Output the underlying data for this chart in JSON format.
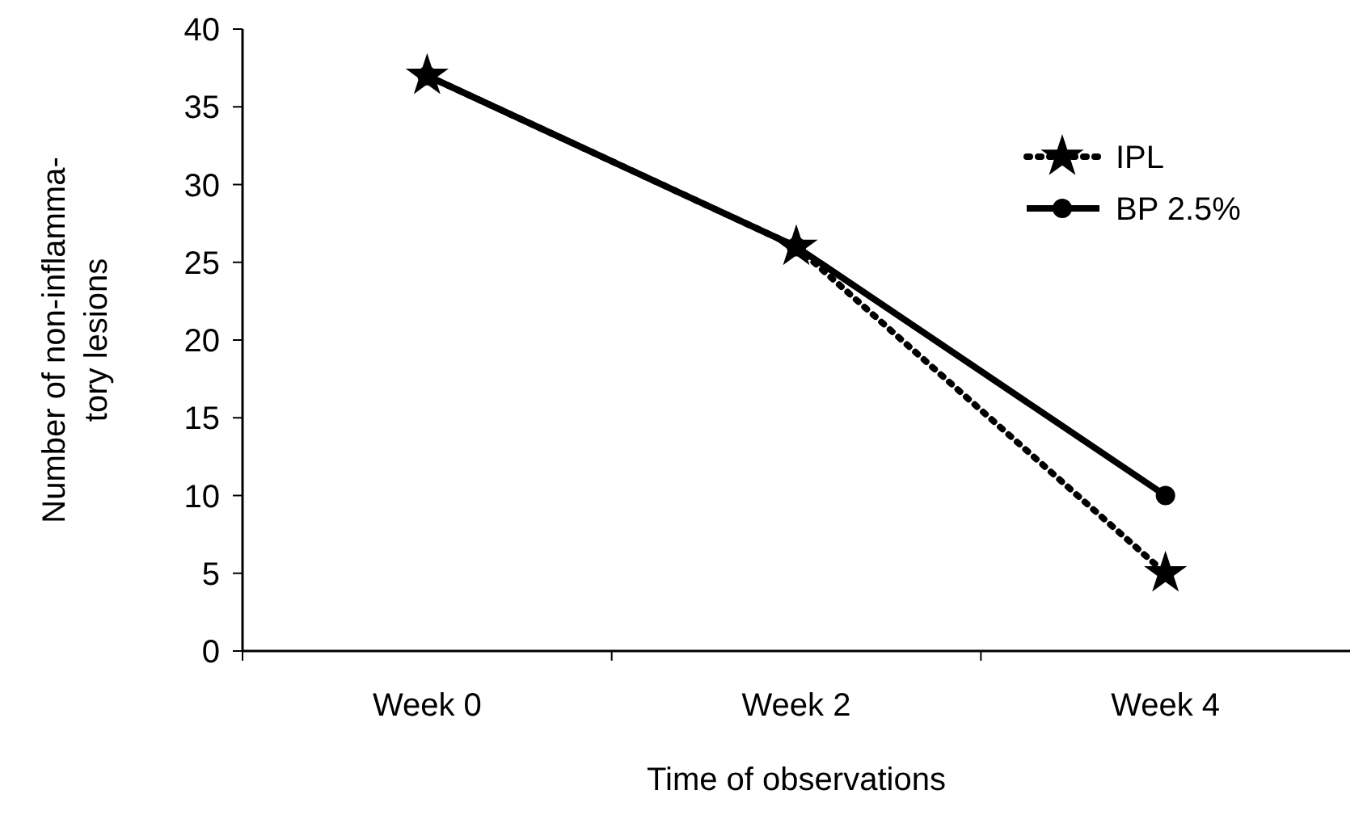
{
  "chart_data": {
    "type": "line",
    "xlabel": "Time of observations",
    "ylabel": "Number of non-inflamma-\ntory lesions",
    "categories": [
      "Week 0",
      "Week 2",
      "Week 4"
    ],
    "series": [
      {
        "name": "BP 2.5%",
        "color": "#000000",
        "values": [
          37,
          26,
          10
        ],
        "marker": "circle",
        "line_style": "solid"
      },
      {
        "name": "IPL",
        "color": "#000000",
        "values": [
          37,
          26,
          5
        ],
        "marker": "star",
        "line_style": "dotted"
      }
    ],
    "ylim": [
      0,
      40
    ],
    "yticks": [
      0,
      5,
      10,
      15,
      20,
      25,
      30,
      35,
      40
    ],
    "grid": false,
    "legend": "top right"
  }
}
